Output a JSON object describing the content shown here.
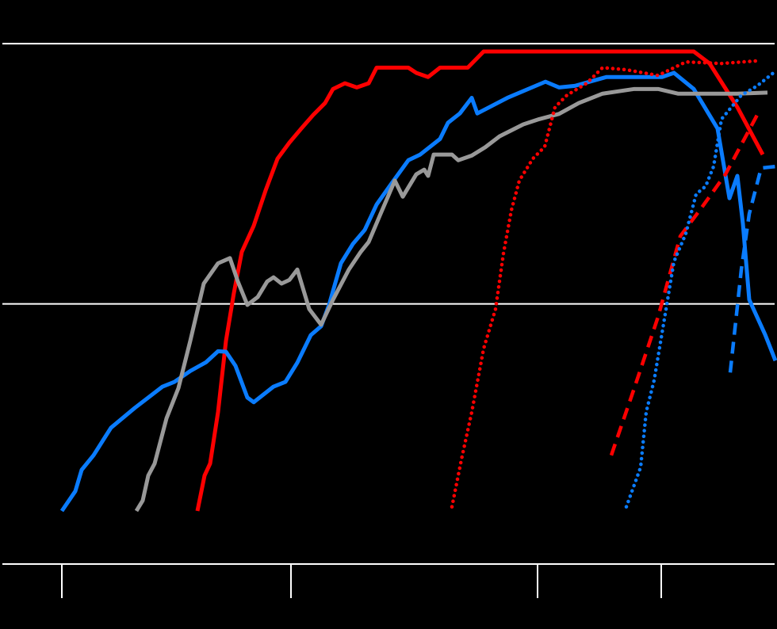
{
  "chart_data": {
    "type": "line",
    "xlim": [
      0,
      98
    ],
    "xticks": [
      7.8,
      36.7,
      67.8,
      83.4
    ],
    "ylim": [
      0,
      108.4
    ],
    "yticks": [
      0,
      50,
      100
    ],
    "grid": true,
    "series": [
      {
        "color": "#ff0000",
        "style": "solid",
        "x": [
          24.9,
          25.8,
          26.5,
          27.5,
          28.5,
          29.5,
          30.5,
          32.0,
          33.5,
          35.0,
          36.5,
          38.0,
          39.5,
          41.0,
          42.0,
          43.5,
          45.0,
          46.5,
          47.5,
          51.5,
          52.5,
          54.0,
          55.5,
          59.0,
          61.0,
          87.5,
          89.5,
          93.0,
          96.2
        ],
        "values": [
          10.2,
          17.0,
          19.3,
          29.2,
          42.9,
          52.1,
          60.0,
          65.0,
          71.8,
          77.9,
          81.0,
          83.7,
          86.3,
          88.6,
          91.3,
          92.4,
          91.6,
          92.4,
          95.4,
          95.4,
          94.4,
          93.6,
          95.4,
          95.4,
          98.5,
          98.5,
          96.2,
          87.8,
          78.7
        ]
      },
      {
        "color": "#0a7cff",
        "style": "solid",
        "x": [
          7.8,
          9.5,
          10.3,
          11.8,
          14.0,
          17.0,
          20.5,
          22.0,
          24.0,
          26.0,
          27.5,
          28.5,
          29.7,
          31.2,
          32.0,
          34.5,
          36.0,
          37.5,
          39.2,
          40.5,
          41.5,
          43.0,
          44.5,
          46.0,
          47.5,
          49.5,
          51.5,
          53.0,
          55.5,
          56.5,
          58.0,
          59.5,
          60.2,
          64.0,
          68.8,
          70.5,
          72.5,
          76.5,
          83.5,
          85.0,
          87.5,
          90.5,
          92.0,
          93.0,
          93.7,
          94.5,
          96.5,
          97.8
        ],
        "values": [
          10.2,
          14.0,
          18.1,
          20.9,
          26.2,
          30.0,
          34.1,
          35.0,
          37.1,
          38.8,
          40.9,
          40.8,
          38.1,
          32.0,
          31.1,
          34.1,
          35.0,
          38.7,
          44.0,
          45.7,
          49.8,
          57.8,
          61.5,
          64.2,
          69.1,
          73.4,
          77.6,
          78.7,
          81.7,
          84.8,
          86.6,
          89.6,
          86.6,
          89.6,
          92.7,
          91.6,
          91.9,
          93.6,
          93.6,
          94.4,
          91.3,
          83.7,
          70.3,
          74.6,
          65.4,
          50.8,
          44.1,
          39.1
        ]
      },
      {
        "color": "#999999",
        "style": "solid",
        "x": [
          17.2,
          18.0,
          18.7,
          19.5,
          21.0,
          22.5,
          24.0,
          25.7,
          27.5,
          29.0,
          30.0,
          31.2,
          32.5,
          33.7,
          34.5,
          35.5,
          36.5,
          37.5,
          39.0,
          40.5,
          42.0,
          44.0,
          45.5,
          46.5,
          48.0,
          49.8,
          50.8,
          52.5,
          53.5,
          54.0,
          54.7,
          57.0,
          57.8,
          59.5,
          61.2,
          63.0,
          66.0,
          68.0,
          70.5,
          73.0,
          76.0,
          80.0,
          83.0,
          85.5,
          93.0,
          96.8
        ],
        "values": [
          10.2,
          12.2,
          17.0,
          19.3,
          28.0,
          33.8,
          42.9,
          53.9,
          57.8,
          58.8,
          54.3,
          49.8,
          51.3,
          54.3,
          55.1,
          53.9,
          54.6,
          56.6,
          49.0,
          46.0,
          50.8,
          56.6,
          60.0,
          61.9,
          67.3,
          73.7,
          70.6,
          74.9,
          75.8,
          74.6,
          78.7,
          78.7,
          77.6,
          78.5,
          80.1,
          82.2,
          84.5,
          85.5,
          86.5,
          88.6,
          90.4,
          91.3,
          91.3,
          90.4,
          90.4,
          90.6
        ]
      },
      {
        "color": "#ff0000",
        "style": "dotted",
        "x": [
          57.0,
          58.2,
          59.5,
          61.0,
          62.5,
          63.5,
          64.5,
          65.5,
          67.2,
          68.7,
          70.0,
          71.5,
          74.0,
          76.0,
          79.0,
          83.0,
          86.5,
          91.0,
          95.5
        ],
        "values": [
          11.0,
          20.1,
          29.2,
          41.4,
          49.0,
          59.7,
          68.0,
          73.7,
          77.9,
          80.2,
          87.8,
          90.1,
          92.4,
          95.4,
          95.0,
          93.9,
          96.5,
          96.2,
          96.7
        ]
      },
      {
        "color": "#ff0000",
        "style": "dashed",
        "x": [
          77.1,
          80.0,
          83.0,
          85.8,
          88.5,
          91.5,
          95.5
        ],
        "values": [
          20.9,
          33.8,
          47.5,
          63.0,
          68.5,
          74.9,
          86.3
        ]
      },
      {
        "color": "#0a7cff",
        "style": "dotted",
        "x": [
          79.0,
          80.8,
          81.5,
          82.5,
          83.5,
          85.0,
          86.5,
          87.8,
          89.0,
          90.0,
          91.0,
          93.5,
          95.5,
          97.8
        ],
        "values": [
          11.0,
          18.6,
          29.2,
          35.3,
          44.4,
          58.1,
          63.5,
          71.1,
          72.6,
          76.4,
          85.5,
          90.1,
          91.9,
          94.7
        ]
      },
      {
        "color": "#0a7cff",
        "style": "dashed",
        "x": [
          92.1,
          93.5,
          94.5,
          96.0,
          97.8
        ],
        "values": [
          36.8,
          56.6,
          67.3,
          76.1,
          76.4
        ]
      }
    ]
  }
}
